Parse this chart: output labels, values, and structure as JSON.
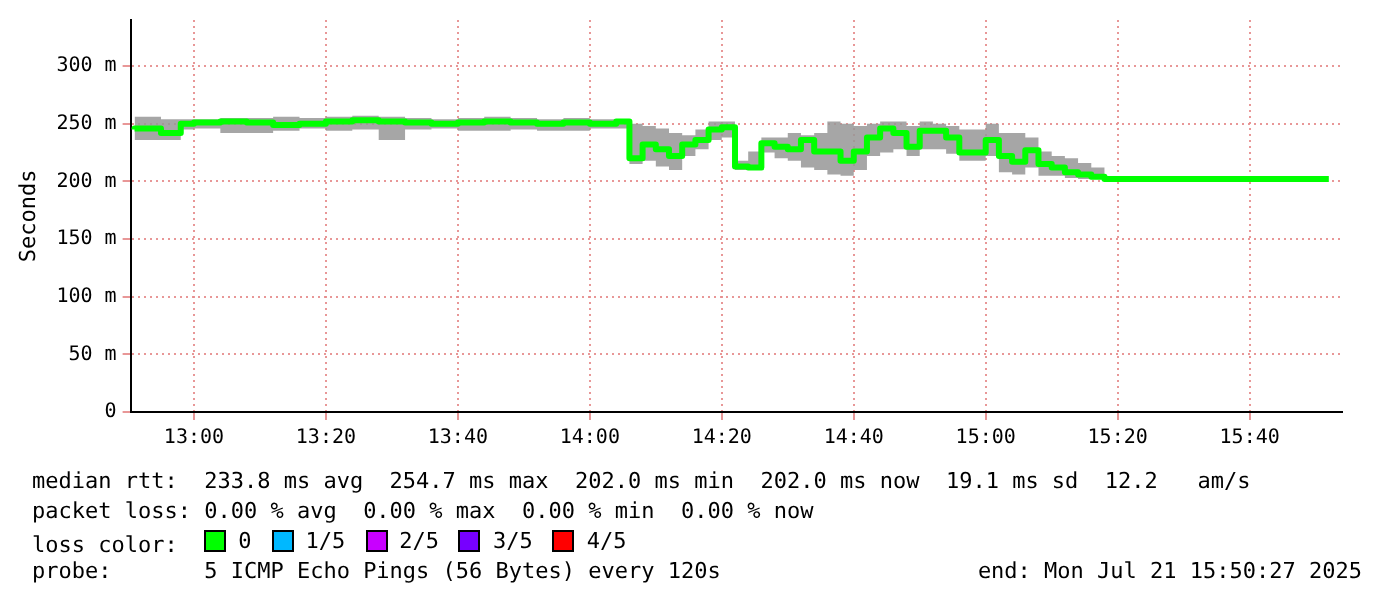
{
  "chart_data": {
    "type": "step",
    "ylabel": "Seconds",
    "legend_title": "loss color:",
    "legend": "bottom",
    "grid": true,
    "marker": "none",
    "x": [
      12.85,
      12.9167,
      12.9667,
      13.0,
      13.0667,
      13.1333,
      13.2,
      13.2667,
      13.3333,
      13.4,
      13.4667,
      13.5333,
      13.6,
      13.6667,
      13.7333,
      13.8,
      13.8667,
      13.9333,
      14.0,
      14.0667,
      14.1,
      14.1333,
      14.1667,
      14.2,
      14.2333,
      14.2667,
      14.3,
      14.3333,
      14.3667,
      14.4,
      14.4333,
      14.4667,
      14.5,
      14.5333,
      14.5667,
      14.6,
      14.6333,
      14.6667,
      14.7,
      14.7333,
      14.7667,
      14.8,
      14.8333,
      14.8667,
      14.9,
      14.9333,
      14.9667,
      15.0,
      15.0333,
      15.0667,
      15.1,
      15.1333,
      15.1667,
      15.2,
      15.2333,
      15.2667,
      15.3,
      15.3333,
      15.8667
    ],
    "series": [
      {
        "name": "0",
        "color": "#00ff00",
        "values": [
          245,
          246,
          242,
          250,
          251,
          252,
          251,
          249,
          250,
          252,
          253,
          252,
          251,
          250,
          251,
          252,
          251,
          250,
          251,
          250,
          252,
          220,
          232,
          228,
          222,
          232,
          236,
          245,
          247,
          213,
          212,
          233,
          230,
          228,
          236,
          226,
          226,
          218,
          226,
          238,
          246,
          242,
          230,
          244,
          244,
          238,
          225,
          225,
          236,
          222,
          217,
          227,
          215,
          212,
          208,
          206,
          204,
          202,
          202
        ],
        "lower": [
          238,
          236,
          236,
          245,
          246,
          242,
          242,
          244,
          246,
          244,
          245,
          236,
          245,
          246,
          244,
          244,
          245,
          244,
          244,
          246,
          246,
          215,
          218,
          213,
          210,
          222,
          228,
          236,
          238,
          210,
          210,
          225,
          220,
          218,
          212,
          210,
          206,
          205,
          210,
          222,
          225,
          228,
          222,
          228,
          228,
          224,
          218,
          218,
          222,
          208,
          206,
          212,
          205,
          205,
          203,
          202,
          202,
          202,
          202
        ],
        "upper": [
          255,
          256,
          254,
          254,
          254,
          255,
          255,
          256,
          255,
          256,
          257,
          256,
          255,
          254,
          255,
          256,
          255,
          254,
          255,
          254,
          254,
          250,
          248,
          246,
          242,
          240,
          245,
          252,
          252,
          218,
          226,
          238,
          238,
          242,
          240,
          242,
          252,
          250,
          248,
          250,
          252,
          252,
          248,
          252,
          250,
          248,
          245,
          245,
          250,
          242,
          242,
          238,
          226,
          222,
          220,
          216,
          212,
          204,
          202
        ]
      },
      {
        "name": "1/5",
        "color": "#00b8ff",
        "values": [
          null,
          null,
          null,
          null,
          null,
          null,
          null,
          null,
          null,
          null,
          null,
          null,
          null,
          null,
          null,
          null,
          null,
          null,
          null,
          null,
          null,
          null,
          null,
          null,
          null,
          null,
          null,
          null,
          null,
          null,
          null,
          null,
          null,
          null,
          null,
          null,
          null,
          null,
          null,
          null,
          null,
          null,
          null,
          null,
          null,
          null,
          null,
          null,
          null,
          null,
          null,
          null,
          null,
          null,
          null,
          null,
          null,
          null,
          null
        ]
      },
      {
        "name": "2/5",
        "color": "#c800ff",
        "values": [
          null,
          null,
          null,
          null,
          null,
          null,
          null,
          null,
          null,
          null,
          null,
          null,
          null,
          null,
          null,
          null,
          null,
          null,
          null,
          null,
          null,
          null,
          null,
          null,
          null,
          null,
          null,
          null,
          null,
          null,
          null,
          null,
          null,
          null,
          null,
          null,
          null,
          null,
          null,
          null,
          null,
          null,
          null,
          null,
          null,
          null,
          null,
          null,
          null,
          null,
          null,
          null,
          null,
          null,
          null,
          null,
          null,
          null,
          null
        ]
      },
      {
        "name": "3/5",
        "color": "#7700ff",
        "values": [
          null,
          null,
          null,
          null,
          null,
          null,
          null,
          null,
          null,
          null,
          null,
          null,
          null,
          null,
          null,
          null,
          null,
          null,
          null,
          null,
          null,
          null,
          null,
          null,
          null,
          null,
          null,
          null,
          null,
          null,
          null,
          null,
          null,
          null,
          null,
          null,
          null,
          null,
          null,
          null,
          null,
          null,
          null,
          null,
          null,
          null,
          null,
          null,
          null,
          null,
          null,
          null,
          null,
          null,
          null,
          null,
          null,
          null,
          null
        ]
      },
      {
        "name": "4/5",
        "color": "#ff0000",
        "values": [
          null,
          null,
          null,
          null,
          null,
          null,
          null,
          null,
          null,
          null,
          null,
          null,
          null,
          null,
          null,
          null,
          null,
          null,
          null,
          null,
          null,
          null,
          null,
          null,
          null,
          null,
          null,
          null,
          null,
          null,
          null,
          null,
          null,
          null,
          null,
          null,
          null,
          null,
          null,
          null,
          null,
          null,
          null,
          null,
          null,
          null,
          null,
          null,
          null,
          null,
          null,
          null,
          null,
          null,
          null,
          null,
          null,
          null,
          null
        ]
      }
    ],
    "xlim": [
      12.84,
      15.9
    ],
    "xticks": [
      {
        "value": 13,
        "label": "13:00"
      },
      {
        "value": 13.3333,
        "label": "13:20"
      },
      {
        "value": 13.6667,
        "label": "13:40"
      },
      {
        "value": 14,
        "label": "14:00"
      },
      {
        "value": 14.3333,
        "label": "14:20"
      },
      {
        "value": 14.6667,
        "label": "14:40"
      },
      {
        "value": 15,
        "label": "15:00"
      },
      {
        "value": 15.3333,
        "label": "15:20"
      },
      {
        "value": 15.6667,
        "label": "15:40"
      }
    ],
    "ylim": [
      0,
      340
    ],
    "yticks": [
      0,
      {
        "value": 50,
        "label": "50 m"
      },
      {
        "value": 100,
        "label": "100 m"
      },
      {
        "value": 150,
        "label": "150 m"
      },
      {
        "value": 200,
        "label": "200 m"
      },
      {
        "value": 250,
        "label": "250 m"
      },
      {
        "value": 300,
        "label": "300 m"
      }
    ],
    "annotations": [
      "median rtt:  233.8 ms avg  254.7 ms max  202.0 ms min  202.0 ms now  19.1 ms sd  12.2   am/s",
      "packet loss: 0.00 % avg  0.00 % max  0.00 % min  0.00 % now",
      "probe:       5 ICMP Echo Pings (56 Bytes) every 120s",
      "end: Mon Jul 21 15:50:27 2025"
    ]
  }
}
